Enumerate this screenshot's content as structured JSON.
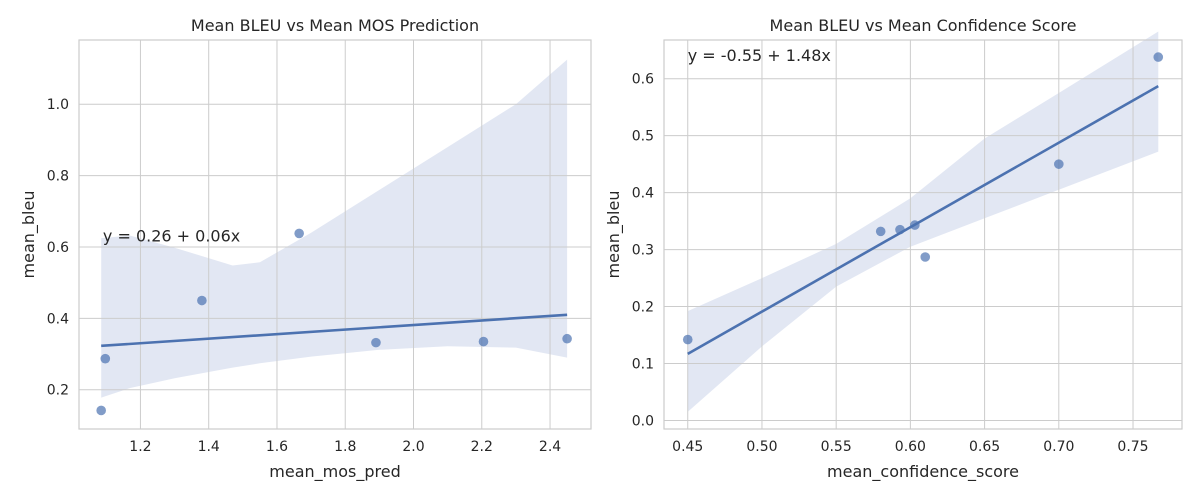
{
  "colors": {
    "grid": "#cccccc",
    "frame": "#cccccc",
    "point": "#4c72b0",
    "line": "#4c72b0",
    "band": "#dde3f1"
  },
  "chart_data": [
    {
      "type": "scatter",
      "title": "Mean BLEU vs Mean MOS Prediction",
      "xlabel": "mean_mos_pred",
      "ylabel": "mean_bleu",
      "annotation": "y = 0.26 + 0.06x",
      "annotation_at": {
        "x": 1.09,
        "y": 0.63
      },
      "xlim": [
        1.02,
        2.52
      ],
      "ylim": [
        0.09,
        1.18
      ],
      "xticks": [
        1.2,
        1.4,
        1.6,
        1.8,
        2.0,
        2.2,
        2.4
      ],
      "xtick_labels": [
        "1.2",
        "1.4",
        "1.6",
        "1.8",
        "2.0",
        "2.2",
        "2.4"
      ],
      "yticks": [
        0.2,
        0.4,
        0.6,
        0.8,
        1.0
      ],
      "ytick_labels": [
        "0.2",
        "0.4",
        "0.6",
        "0.8",
        "1.0"
      ],
      "grid": true,
      "points": [
        {
          "x": 1.085,
          "y": 0.142
        },
        {
          "x": 1.097,
          "y": 0.287
        },
        {
          "x": 1.38,
          "y": 0.45
        },
        {
          "x": 1.665,
          "y": 0.638
        },
        {
          "x": 1.89,
          "y": 0.332
        },
        {
          "x": 2.205,
          "y": 0.335
        },
        {
          "x": 2.45,
          "y": 0.343
        }
      ],
      "fit": {
        "intercept": 0.26,
        "slope": 0.06
      },
      "ci_band": [
        {
          "x": 1.085,
          "lo": 0.178,
          "hi": 0.625
        },
        {
          "x": 1.17,
          "lo": 0.205,
          "hi": 0.632
        },
        {
          "x": 1.3,
          "lo": 0.232,
          "hi": 0.598
        },
        {
          "x": 1.47,
          "lo": 0.262,
          "hi": 0.548
        },
        {
          "x": 1.55,
          "lo": 0.274,
          "hi": 0.557
        },
        {
          "x": 1.7,
          "lo": 0.293,
          "hi": 0.64
        },
        {
          "x": 1.9,
          "lo": 0.312,
          "hi": 0.76
        },
        {
          "x": 2.1,
          "lo": 0.322,
          "hi": 0.88
        },
        {
          "x": 2.3,
          "lo": 0.318,
          "hi": 1.0
        },
        {
          "x": 2.45,
          "lo": 0.29,
          "hi": 1.125
        }
      ]
    },
    {
      "type": "scatter",
      "title": "Mean BLEU vs Mean Confidence Score",
      "xlabel": "mean_confidence_score",
      "ylabel": "mean_bleu",
      "annotation": "y = -0.55 + 1.48x",
      "annotation_at": {
        "x": 0.45,
        "y": 0.64
      },
      "xlim": [
        0.434,
        0.783
      ],
      "ylim": [
        -0.015,
        0.668
      ],
      "xticks": [
        0.45,
        0.5,
        0.55,
        0.6,
        0.65,
        0.7,
        0.75
      ],
      "xtick_labels": [
        "0.45",
        "0.50",
        "0.55",
        "0.60",
        "0.65",
        "0.70",
        "0.75"
      ],
      "yticks": [
        0.0,
        0.1,
        0.2,
        0.3,
        0.4,
        0.5,
        0.6
      ],
      "ytick_labels": [
        "0.0",
        "0.1",
        "0.2",
        "0.3",
        "0.4",
        "0.5",
        "0.6"
      ],
      "grid": true,
      "points": [
        {
          "x": 0.45,
          "y": 0.142
        },
        {
          "x": 0.58,
          "y": 0.332
        },
        {
          "x": 0.593,
          "y": 0.335
        },
        {
          "x": 0.603,
          "y": 0.343
        },
        {
          "x": 0.61,
          "y": 0.287
        },
        {
          "x": 0.7,
          "y": 0.45
        },
        {
          "x": 0.767,
          "y": 0.638
        }
      ],
      "fit": {
        "intercept": -0.55,
        "slope": 1.48
      },
      "ci_band": [
        {
          "x": 0.45,
          "lo": 0.015,
          "hi": 0.192
        },
        {
          "x": 0.5,
          "lo": 0.13,
          "hi": 0.25
        },
        {
          "x": 0.55,
          "lo": 0.235,
          "hi": 0.31
        },
        {
          "x": 0.6,
          "lo": 0.305,
          "hi": 0.39
        },
        {
          "x": 0.65,
          "lo": 0.355,
          "hi": 0.495
        },
        {
          "x": 0.7,
          "lo": 0.405,
          "hi": 0.575
        },
        {
          "x": 0.767,
          "lo": 0.472,
          "hi": 0.683
        }
      ]
    }
  ]
}
